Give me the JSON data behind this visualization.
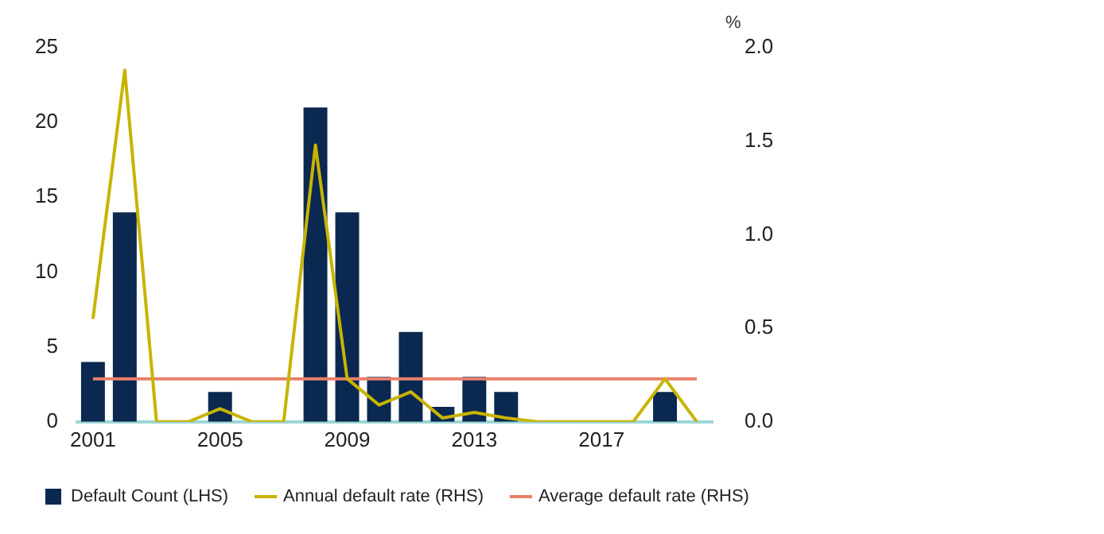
{
  "chart_data": {
    "type": "bar",
    "y2label": "%",
    "categories": [
      "2001",
      null,
      null,
      null,
      "2005",
      null,
      null,
      null,
      "2009",
      null,
      null,
      null,
      "2013",
      null,
      null,
      null,
      "2017",
      null,
      null,
      null
    ],
    "series": [
      {
        "name": "Default Count (LHS)",
        "color": "#0a2850",
        "values": [
          4,
          14,
          0,
          0,
          2,
          0,
          0,
          21,
          14,
          3,
          6,
          1,
          3,
          2,
          0,
          0,
          0,
          0,
          2,
          0
        ]
      },
      {
        "name": "Annual default rate (RHS)",
        "type": "line",
        "axis": "y2",
        "color": "#c8b400",
        "values": [
          0.55,
          1.88,
          0,
          0,
          0.07,
          0,
          0,
          1.48,
          0.23,
          0.09,
          0.16,
          0.02,
          0.05,
          0.02,
          0,
          0,
          0,
          0,
          0.23,
          0
        ]
      },
      {
        "name": "Average default rate (RHS)",
        "type": "line",
        "axis": "y2",
        "color": "#e8806a",
        "values": [
          0.23,
          0.23,
          0.23,
          0.23,
          0.23,
          0.23,
          0.23,
          0.23,
          0.23,
          0.23,
          0.23,
          0.23,
          0.23,
          0.23,
          0.23,
          0.23,
          0.23,
          0.23,
          0.23,
          0.23
        ]
      }
    ],
    "ylim": [
      0,
      25
    ],
    "yticks": [
      0,
      5,
      10,
      15,
      20,
      25
    ],
    "y2lim": [
      0,
      2
    ],
    "y2ticks": [
      {
        "value": 0,
        "label": "0.0"
      },
      {
        "value": 0.5,
        "label": "0.5"
      },
      {
        "value": 1,
        "label": "1.0"
      },
      {
        "value": 1.5,
        "label": "1.5"
      },
      {
        "value": 2,
        "label": "2.0"
      }
    ],
    "grid": false,
    "legend": "bottom",
    "marker": "none",
    "line_style": "solid"
  }
}
